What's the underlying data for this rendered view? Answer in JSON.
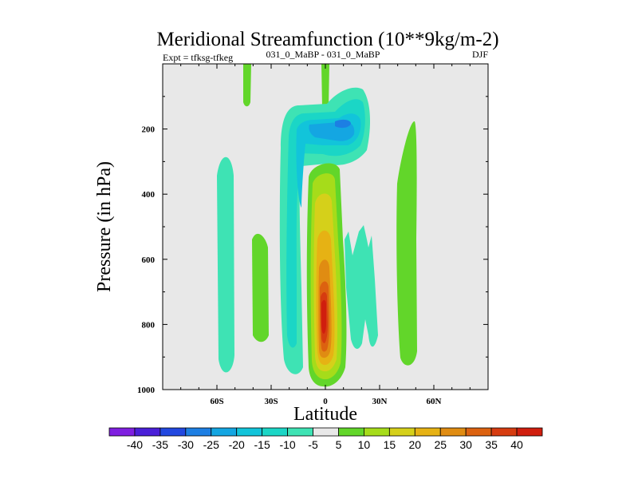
{
  "chart_data": {
    "type": "contour",
    "title": "Meridional Streamfunction (10**9kg/m-2)",
    "left_subtitle": "Expt = tfksg-tfkeg",
    "center_subtitle": "031_0_MaBP - 031_0_MaBP",
    "right_subtitle": "DJF",
    "xlabel": "Latitude",
    "ylabel": "Pressure (in hPa)",
    "xlim": [
      -90,
      90
    ],
    "ylim": [
      1000,
      0
    ],
    "x_ticks": [
      {
        "value": -60,
        "label": "60S"
      },
      {
        "value": -30,
        "label": "30S"
      },
      {
        "value": 0,
        "label": "0"
      },
      {
        "value": 30,
        "label": "30N"
      },
      {
        "value": 60,
        "label": "60N"
      }
    ],
    "y_ticks": [
      {
        "value": 200,
        "label": "200"
      },
      {
        "value": 400,
        "label": "400"
      },
      {
        "value": 600,
        "label": "600"
      },
      {
        "value": 800,
        "label": "800"
      },
      {
        "value": 1000,
        "label": "1000"
      }
    ],
    "levels": [
      -40,
      -35,
      -30,
      -25,
      -20,
      -15,
      -10,
      -5,
      5,
      10,
      15,
      20,
      25,
      30,
      35,
      40
    ],
    "colors": [
      "#7f1fe0",
      "#4a1fd8",
      "#2248e0",
      "#1d7fe3",
      "#14a6e2",
      "#12c4da",
      "#1bd6c6",
      "#3ee3b4",
      "#e8e8e8",
      "#62d62a",
      "#a6dc1a",
      "#d5d01a",
      "#e6b214",
      "#e08c12",
      "#dc6210",
      "#d63c10",
      "#d01e0e"
    ],
    "background": "#e8e8e8",
    "features": [
      {
        "label": "southern mid-latitude negative cell",
        "value": -5,
        "lat_range": [
          -60,
          -52
        ],
        "p_range": [
          270,
          950
        ]
      },
      {
        "label": "southern subtropical positive cell",
        "value": 5,
        "lat_range": [
          -40,
          -31
        ],
        "p_range": [
          500,
          860
        ]
      },
      {
        "label": "upper stratospheric band 40S",
        "value": 5,
        "lat_range": [
          -44,
          -40
        ],
        "p_range": [
          0,
          100
        ]
      },
      {
        "label": "upper stratospheric band equator",
        "value": 5,
        "lat_range": [
          -2,
          2
        ],
        "p_range": [
          0,
          130
        ]
      },
      {
        "label": "tropical negative cell",
        "value": -15,
        "lat_range": [
          -20,
          25
        ],
        "p_range": [
          80,
          900
        ]
      },
      {
        "label": "upper tropospheric minimum",
        "value": -25,
        "lat_range": [
          5,
          20
        ],
        "p_range": [
          150,
          220
        ]
      },
      {
        "label": "tropical positive cell",
        "value": 40,
        "lat_range": [
          -5,
          10
        ],
        "p_range": [
          280,
          980
        ]
      },
      {
        "label": "northern subtropical negative cells",
        "value": -5,
        "lat_range": [
          15,
          40
        ],
        "p_range": [
          480,
          890
        ]
      },
      {
        "label": "northern mid-latitude positive cell",
        "value": 5,
        "lat_range": [
          42,
          52
        ],
        "p_range": [
          170,
          960
        ]
      }
    ]
  }
}
